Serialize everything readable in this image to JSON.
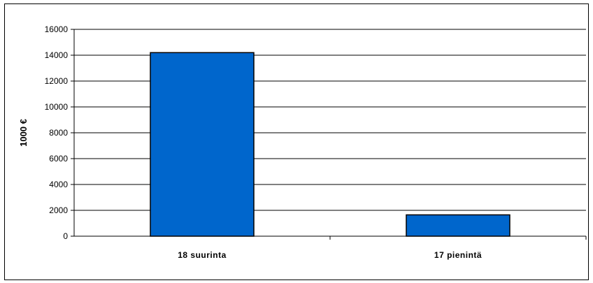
{
  "chart_data": {
    "type": "bar",
    "title": "",
    "xlabel": "",
    "ylabel": "1000 €",
    "categories": [
      "18 suurinta",
      "17 pienintä"
    ],
    "values": [
      14200,
      1650
    ],
    "ylim": [
      0,
      16000
    ],
    "yticks": [
      "0",
      "2000",
      "4000",
      "6000",
      "8000",
      "10000",
      "12000",
      "14000",
      "16000"
    ],
    "grid": true,
    "legend": "none",
    "bar_color": "#0066CC",
    "bar_edge_color": "#000000"
  }
}
